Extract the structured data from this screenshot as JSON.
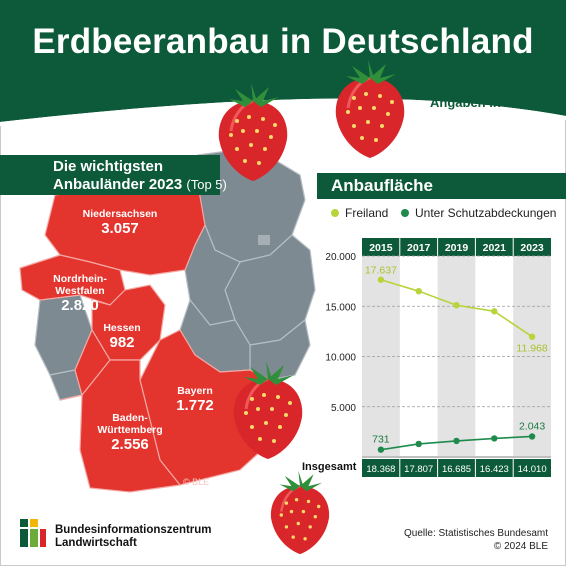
{
  "title": "Erdbeeranbau in Deutschland",
  "units_note": "Angaben in Hektar",
  "map_panel": {
    "heading_line1": "Die wichtigsten",
    "heading_line2": "Anbauländer 2023",
    "heading_suffix": "(Top 5)",
    "copyright": "© BLE",
    "states": [
      {
        "name": "Niedersachsen",
        "value": "3.057"
      },
      {
        "name_line1": "Nordrhein-",
        "name_line2": "Westfalen",
        "value": "2.820"
      },
      {
        "name": "Hessen",
        "value": "982"
      },
      {
        "name": "Bayern",
        "value": "1.772"
      },
      {
        "name_line1": "Baden-",
        "name_line2": "Württemberg",
        "value": "2.556"
      }
    ]
  },
  "chart_heading": "Anbaufläche",
  "legend": {
    "freiland": "Freiland",
    "schutz": "Unter Schutzabdeckungen"
  },
  "colors": {
    "dark_green": "#0d5a3a",
    "freiland": "#b7d43a",
    "schutz": "#1e8a4c",
    "state_red": "#e3342d",
    "state_grey": "#7d8a92"
  },
  "chart_data": {
    "type": "line",
    "title": "Anbaufläche",
    "x": [
      "2015",
      "2017",
      "2019",
      "2021",
      "2023"
    ],
    "ylim": [
      0,
      20000
    ],
    "yticks": [
      "20.000",
      "15.000",
      "10.000",
      "5.000"
    ],
    "yticks_values": [
      20000,
      15000,
      10000,
      5000
    ],
    "series": [
      {
        "name": "Freiland",
        "values": [
          17637,
          16500,
          15100,
          14500,
          11968
        ]
      },
      {
        "name": "Unter Schutzabdeckungen",
        "values": [
          731,
          1300,
          1600,
          1850,
          2043
        ]
      }
    ],
    "data_labels": {
      "Freiland": {
        "first": "17.637",
        "last": "11.968"
      },
      "Unter Schutzabdeckungen": {
        "first": "731",
        "last": "2.043"
      }
    },
    "totals_label": "Insgesamt",
    "totals": [
      "18.368",
      "17.807",
      "16.685",
      "16.423",
      "14.010"
    ],
    "grid": true
  },
  "footer": {
    "brand_line1": "Bundesinformationszentrum",
    "brand_line2": "Landwirtschaft",
    "source": "Quelle: Statistisches Bundesamt",
    "copyright": "© 2024 BLE"
  }
}
